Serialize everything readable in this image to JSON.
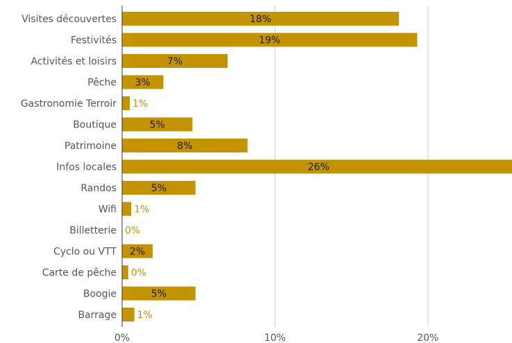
{
  "chart_data": {
    "type": "bar",
    "orientation": "horizontal",
    "categories": [
      "Visites découvertes",
      "Festivités",
      "Activités et loisirs",
      "Pêche",
      "Gastronomie Terroir",
      "Boutique",
      "Patrimoine",
      "Infos locales",
      "Randos",
      "Wifi",
      "Billetterie",
      "Cyclo ou VTT",
      "Carte de pêche",
      "Boogie",
      "Barrage"
    ],
    "values": [
      18.1,
      19.3,
      6.9,
      2.7,
      0.5,
      4.6,
      8.2,
      25.7,
      4.8,
      0.6,
      0.0,
      2.0,
      0.4,
      4.8,
      0.8
    ],
    "value_labels": [
      "18%",
      "19%",
      "7%",
      "3%",
      "1%",
      "5%",
      "8%",
      "26%",
      "5%",
      "1%",
      "0%",
      "2%",
      "0%",
      "5%",
      "1%"
    ],
    "x_ticks": [
      {
        "value": 0,
        "label": "0%"
      },
      {
        "value": 10,
        "label": "10%"
      },
      {
        "value": 20,
        "label": "20%"
      }
    ],
    "xlim": [
      0,
      25.5
    ],
    "grid": true,
    "title": "",
    "xlabel": "",
    "ylabel": "",
    "colors": {
      "bar": "#C39300",
      "grid": "#cccccc",
      "axis": "#333333"
    }
  }
}
